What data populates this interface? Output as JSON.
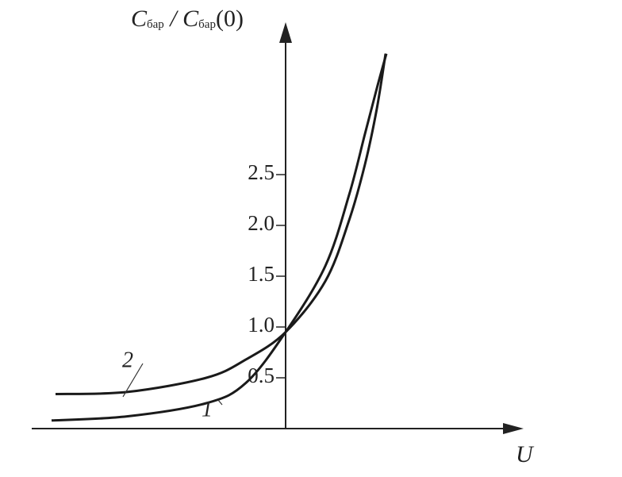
{
  "chart_data": {
    "type": "line",
    "y_label_parts": [
      "C",
      "бар",
      " / ",
      "C",
      "бар",
      "(0)"
    ],
    "x_label": "U",
    "xlim": [
      -3.2,
      3.0
    ],
    "ylim": [
      0,
      4
    ],
    "yticks": [
      0.5,
      {
        "value": 1,
        "label": "1.0"
      },
      1.5,
      {
        "value": 2,
        "label": "2.0"
      },
      2.5
    ],
    "series": [
      {
        "name": "1",
        "color": "#1a1a1a",
        "x": [
          -2.95,
          -2.0,
          -1.0,
          -0.5,
          0,
          0.5,
          0.8,
          1.0,
          1.15,
          1.27
        ],
        "values": [
          0.08,
          0.12,
          0.25,
          0.45,
          0.95,
          1.6,
          2.3,
          2.9,
          3.35,
          3.69
        ]
      },
      {
        "name": "2",
        "color": "#1a1a1a",
        "x": [
          -2.9,
          -2.0,
          -1.0,
          -0.5,
          0,
          0.5,
          0.8,
          1.0,
          1.15,
          1.26
        ],
        "values": [
          0.34,
          0.36,
          0.5,
          0.68,
          0.95,
          1.45,
          2.05,
          2.6,
          3.15,
          3.69
        ]
      }
    ]
  }
}
